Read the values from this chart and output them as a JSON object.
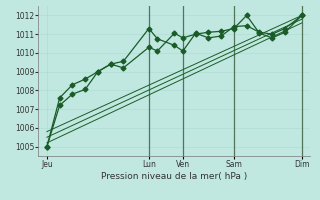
{
  "title": "Pression niveau de la mer( hPa )",
  "bg_color": "#c0e8e0",
  "grid_color_minor": "#b0ddd4",
  "grid_color_major": "#90c8bc",
  "line_color": "#1a5c28",
  "ylim": [
    1004.5,
    1012.5
  ],
  "yticks": [
    1005,
    1006,
    1007,
    1008,
    1009,
    1010,
    1011,
    1012
  ],
  "xlim": [
    0,
    32
  ],
  "x_day_labels": [
    "Jeu",
    "Lun",
    "Ven",
    "Sam",
    "Dim"
  ],
  "x_day_positions": [
    1,
    13,
    17,
    23,
    31
  ],
  "vlines_x": [
    13,
    17,
    23,
    31
  ],
  "line1_x": [
    1,
    2.5,
    4,
    5.5,
    7,
    8.5,
    10,
    13,
    14,
    16,
    17,
    18.5,
    20,
    21.5,
    23,
    24.5,
    26,
    27.5,
    29,
    31
  ],
  "line1_y": [
    1005.0,
    1007.2,
    1007.8,
    1008.05,
    1009.0,
    1009.4,
    1009.55,
    1011.3,
    1010.75,
    1010.4,
    1010.1,
    1011.05,
    1010.8,
    1010.9,
    1011.4,
    1011.45,
    1011.1,
    1011.0,
    1011.3,
    1012.0
  ],
  "line2_x": [
    1,
    2.5,
    4,
    5.5,
    7,
    8.5,
    10,
    13,
    14,
    16,
    17,
    18.5,
    20,
    21.5,
    23,
    24.5,
    26,
    27.5,
    29,
    31
  ],
  "line2_y": [
    1005.0,
    1007.6,
    1008.3,
    1008.6,
    1009.0,
    1009.4,
    1009.2,
    1010.3,
    1010.1,
    1011.05,
    1010.8,
    1011.0,
    1011.1,
    1011.15,
    1011.3,
    1012.0,
    1011.05,
    1010.8,
    1011.1,
    1012.0
  ],
  "trend1_x": [
    1,
    31
  ],
  "trend1_y": [
    1005.2,
    1011.6
  ],
  "trend2_x": [
    1,
    31
  ],
  "trend2_y": [
    1005.5,
    1011.8
  ],
  "trend3_x": [
    1,
    31
  ],
  "trend3_y": [
    1005.8,
    1012.0
  ],
  "marker": "D",
  "markersize": 2.5
}
